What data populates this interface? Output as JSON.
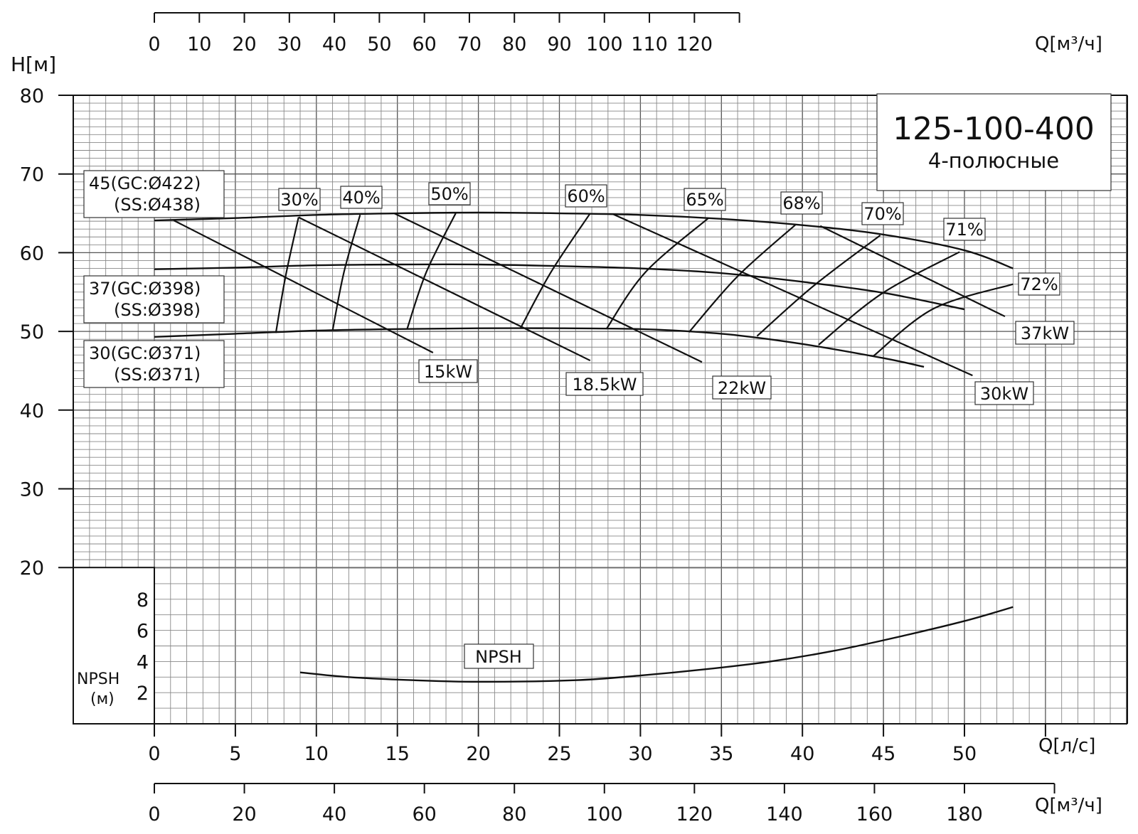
{
  "chart_data": {
    "type": "line",
    "title": "125-100-400",
    "subtitle": "4-полюсные",
    "ylabel": "H[м]",
    "xlabel_ls": "Q[л/с]",
    "xlabel_m3h": "Q[м³/ч]",
    "ylim": [
      20,
      80
    ],
    "xlim_ls": [
      0,
      60
    ],
    "grid": true,
    "y_ticks": [
      "20",
      "30",
      "40",
      "50",
      "60",
      "70",
      "80"
    ],
    "x_ticks_ls": [
      "0",
      "5",
      "10",
      "15",
      "20",
      "25",
      "30",
      "35",
      "40",
      "45",
      "50"
    ],
    "x_ticks_top": [
      "0",
      "10",
      "20",
      "30",
      "40",
      "50",
      "60",
      "70",
      "80",
      "90",
      "100",
      "110",
      "120"
    ],
    "x_ticks_bottom": [
      "0",
      "20",
      "40",
      "60",
      "80",
      "100",
      "120",
      "140",
      "160",
      "180"
    ],
    "npsh_axis": {
      "label_line1": "NPSH",
      "label_line2": "(м)",
      "ticks": [
        "2",
        "4",
        "6",
        "8"
      ],
      "ylim": [
        0,
        10
      ]
    },
    "series": [
      {
        "name": "45(GC:Ø422)",
        "name2": "(SS:Ø438)",
        "x": [
          0,
          5,
          10,
          15,
          20,
          25,
          30,
          35,
          40,
          45,
          50,
          53
        ],
        "y": [
          64.1,
          64.4,
          64.8,
          65.0,
          65.1,
          65.0,
          64.8,
          64.3,
          63.5,
          62.3,
          60.3,
          58.0
        ]
      },
      {
        "name": "37(GC:Ø398)",
        "name2": "(SS:Ø398)",
        "x": [
          0,
          5,
          10,
          15,
          20,
          25,
          30,
          35,
          40,
          45,
          50
        ],
        "y": [
          57.9,
          58.1,
          58.4,
          58.5,
          58.5,
          58.3,
          58.0,
          57.4,
          56.3,
          54.9,
          52.8
        ]
      },
      {
        "name": "30(GC:Ø371)",
        "name2": "(SS:Ø371)",
        "x": [
          0,
          5,
          10,
          15,
          20,
          25,
          30,
          33,
          36,
          40,
          45,
          47.5
        ],
        "y": [
          49.3,
          49.7,
          50.1,
          50.3,
          50.4,
          50.4,
          50.3,
          50.0,
          49.5,
          48.4,
          46.6,
          45.5
        ]
      }
    ],
    "efficiency_curves": [
      {
        "label": "30%",
        "x": [
          7.5,
          8.1,
          8.9
        ],
        "y": [
          49.8,
          57.0,
          64.5
        ]
      },
      {
        "label": "40%",
        "x": [
          11.0,
          11.7,
          12.7
        ],
        "y": [
          50.1,
          57.5,
          64.8
        ]
      },
      {
        "label": "50%",
        "x": [
          15.6,
          16.8,
          18.6
        ],
        "y": [
          50.3,
          57.6,
          65.0
        ]
      },
      {
        "label": "60%",
        "x": [
          22.6,
          24.5,
          26.9
        ],
        "y": [
          50.4,
          57.6,
          65.0
        ]
      },
      {
        "label": "65%",
        "x": [
          27.9,
          30.3,
          34.2
        ],
        "y": [
          50.3,
          57.5,
          64.4
        ]
      },
      {
        "label": "68%",
        "x": [
          33.0,
          36.0,
          39.6
        ],
        "y": [
          49.9,
          57.0,
          63.6
        ]
      },
      {
        "label": "70%",
        "x": [
          37.2,
          40.7,
          44.8
        ],
        "y": [
          49.4,
          55.8,
          62.2
        ]
      },
      {
        "label": "71%",
        "x": [
          41.0,
          44.9,
          49.7
        ],
        "y": [
          48.3,
          54.8,
          60.1
        ]
      },
      {
        "label": "72%",
        "x": [
          44.4,
          48.1,
          53.0
        ],
        "y": [
          46.9,
          52.9,
          56.0
        ]
      }
    ],
    "power_lines": [
      {
        "label": "15kW",
        "x": [
          1.2,
          17.2
        ],
        "y": [
          64.1,
          47.3
        ]
      },
      {
        "label": "18.5kW",
        "x": [
          8.9,
          26.9
        ],
        "y": [
          64.5,
          46.3
        ]
      },
      {
        "label": "22kW",
        "x": [
          14.8,
          33.8
        ],
        "y": [
          65.0,
          46.1
        ]
      },
      {
        "label": "30kW",
        "x": [
          28.3,
          50.5
        ],
        "y": [
          64.9,
          44.4
        ]
      },
      {
        "label": "37kW",
        "x": [
          41.1,
          52.5
        ],
        "y": [
          63.4,
          51.9
        ]
      }
    ],
    "npsh": {
      "label": "NPSH",
      "x": [
        9,
        12,
        16,
        20,
        26,
        30,
        34,
        38,
        42,
        46,
        50,
        53
      ],
      "y": [
        3.3,
        3.0,
        2.8,
        2.7,
        2.8,
        3.1,
        3.5,
        4.0,
        4.7,
        5.6,
        6.6,
        7.5
      ]
    }
  }
}
